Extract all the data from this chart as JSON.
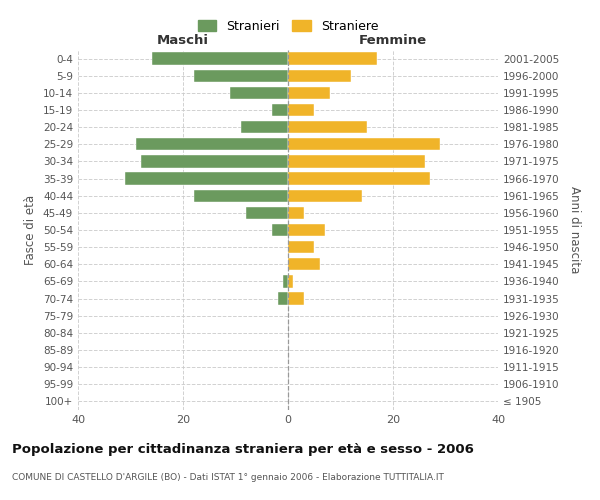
{
  "age_groups": [
    "100+",
    "95-99",
    "90-94",
    "85-89",
    "80-84",
    "75-79",
    "70-74",
    "65-69",
    "60-64",
    "55-59",
    "50-54",
    "45-49",
    "40-44",
    "35-39",
    "30-34",
    "25-29",
    "20-24",
    "15-19",
    "10-14",
    "5-9",
    "0-4"
  ],
  "birth_years": [
    "≤ 1905",
    "1906-1910",
    "1911-1915",
    "1916-1920",
    "1921-1925",
    "1926-1930",
    "1931-1935",
    "1936-1940",
    "1941-1945",
    "1946-1950",
    "1951-1955",
    "1956-1960",
    "1961-1965",
    "1966-1970",
    "1971-1975",
    "1976-1980",
    "1981-1985",
    "1986-1990",
    "1991-1995",
    "1996-2000",
    "2001-2005"
  ],
  "maschi": [
    0,
    0,
    0,
    0,
    0,
    0,
    2,
    1,
    0,
    0,
    3,
    8,
    18,
    31,
    28,
    29,
    9,
    3,
    11,
    18,
    26
  ],
  "femmine": [
    0,
    0,
    0,
    0,
    0,
    0,
    3,
    1,
    6,
    5,
    7,
    3,
    14,
    27,
    26,
    29,
    15,
    5,
    8,
    12,
    17
  ],
  "color_maschi": "#6b9a5e",
  "color_femmine": "#f0b429",
  "title": "Popolazione per cittadinanza straniera per età e sesso - 2006",
  "subtitle": "COMUNE DI CASTELLO D'ARGILE (BO) - Dati ISTAT 1° gennaio 2006 - Elaborazione TUTTITALIA.IT",
  "xlabel_left": "Maschi",
  "xlabel_right": "Femmine",
  "ylabel_left": "Fasce di età",
  "ylabel_right": "Anni di nascita",
  "legend_maschi": "Stranieri",
  "legend_femmine": "Straniere",
  "xlim": 40,
  "background_color": "#ffffff",
  "grid_color": "#cccccc"
}
